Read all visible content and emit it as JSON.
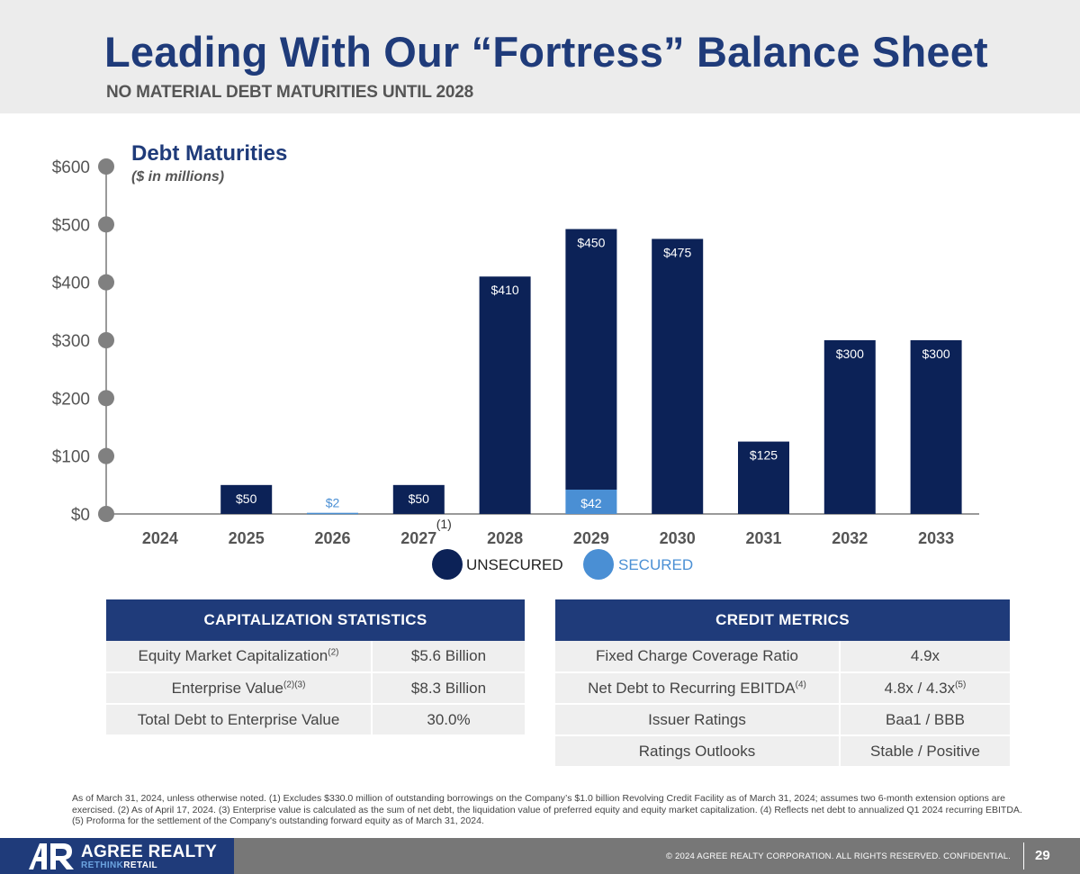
{
  "header": {
    "title": "Leading With Our “Fortress” Balance Sheet",
    "subtitle": "NO MATERIAL DEBT MATURITIES UNTIL 2028"
  },
  "colors": {
    "unsecured": "#0c2257",
    "secured": "#4a8fd4",
    "accent": "#1f3b7a",
    "axis_dot": "#808080"
  },
  "chart_data": {
    "type": "bar",
    "stacked": true,
    "title": "Debt Maturities",
    "subtitle": "($ in millions)",
    "categories": [
      "2024",
      "2025",
      "2026",
      "2027",
      "2028",
      "2029",
      "2030",
      "2031",
      "2032",
      "2033"
    ],
    "category_note": {
      "index": 3,
      "text": "(1)"
    },
    "series": [
      {
        "name": "UNSECURED",
        "values": [
          0,
          50,
          0,
          50,
          410,
          450,
          475,
          125,
          300,
          300
        ]
      },
      {
        "name": "SECURED",
        "values": [
          0,
          0,
          2,
          0,
          0,
          42,
          0,
          0,
          0,
          0
        ]
      }
    ],
    "yticks": [
      0,
      100,
      200,
      300,
      400,
      500,
      600
    ],
    "ytick_labels": [
      "$0",
      "$100",
      "$200",
      "$300",
      "$400",
      "$500",
      "$600"
    ],
    "ylim": [
      0,
      600
    ],
    "data_labels": [
      {
        "series": 0,
        "index": 1,
        "text": "$50"
      },
      {
        "series": 1,
        "index": 2,
        "text": "$2"
      },
      {
        "series": 0,
        "index": 3,
        "text": "$50"
      },
      {
        "series": 0,
        "index": 4,
        "text": "$410"
      },
      {
        "series": 0,
        "index": 5,
        "text": "$450"
      },
      {
        "series": 1,
        "index": 5,
        "text": "$42"
      },
      {
        "series": 0,
        "index": 6,
        "text": "$475"
      },
      {
        "series": 0,
        "index": 7,
        "text": "$125"
      },
      {
        "series": 0,
        "index": 8,
        "text": "$300"
      },
      {
        "series": 0,
        "index": 9,
        "text": "$300"
      }
    ],
    "legend": [
      "UNSECURED",
      "SECURED"
    ],
    "legend_position": "bottom-center"
  },
  "capitalization": {
    "title": "CAPITALIZATION STATISTICS",
    "rows": [
      {
        "label": "Equity Market Capitalization",
        "note": "(2)",
        "value": "$5.6 Billion"
      },
      {
        "label": "Enterprise Value",
        "note": "(2)(3)",
        "value": "$8.3 Billion"
      },
      {
        "label": "Total Debt to Enterprise Value",
        "note": "",
        "value": "30.0%"
      }
    ]
  },
  "credit": {
    "title": "CREDIT METRICS",
    "rows": [
      {
        "label": "Fixed Charge Coverage Ratio",
        "note": "",
        "value": "4.9x",
        "value_note": ""
      },
      {
        "label": "Net Debt to Recurring EBITDA",
        "note": "(4)",
        "value": "4.8x / 4.3x",
        "value_note": "(5)"
      },
      {
        "label": "Issuer Ratings",
        "note": "",
        "value": "Baa1 / BBB",
        "value_note": ""
      },
      {
        "label": "Ratings Outlooks",
        "note": "",
        "value": "Stable / Positive",
        "value_note": ""
      }
    ]
  },
  "footnote": "As of March 31, 2024, unless otherwise noted. (1) Excludes $330.0 million of outstanding borrowings on the Company’s $1.0 billion Revolving Credit Facility as of March 31, 2024; assumes two 6-month extension options are exercised. (2) As of April 17, 2024. (3) Enterprise value is calculated as the sum of net debt, the liquidation value of preferred equity and equity market capitalization. (4) Reflects net debt to annualized Q1 2024 recurring EBITDA. (5) Proforma for the settlement of the Company's outstanding forward equity as of March 31, 2024.",
  "footer": {
    "logo_name": "AGREE REALTY",
    "logo_tag_a": "RETHINK",
    "logo_tag_b": "RETAIL",
    "copyright": "© 2024 AGREE REALTY CORPORATION. ALL RIGHTS RESERVED. CONFIDENTIAL.",
    "page": "29"
  }
}
